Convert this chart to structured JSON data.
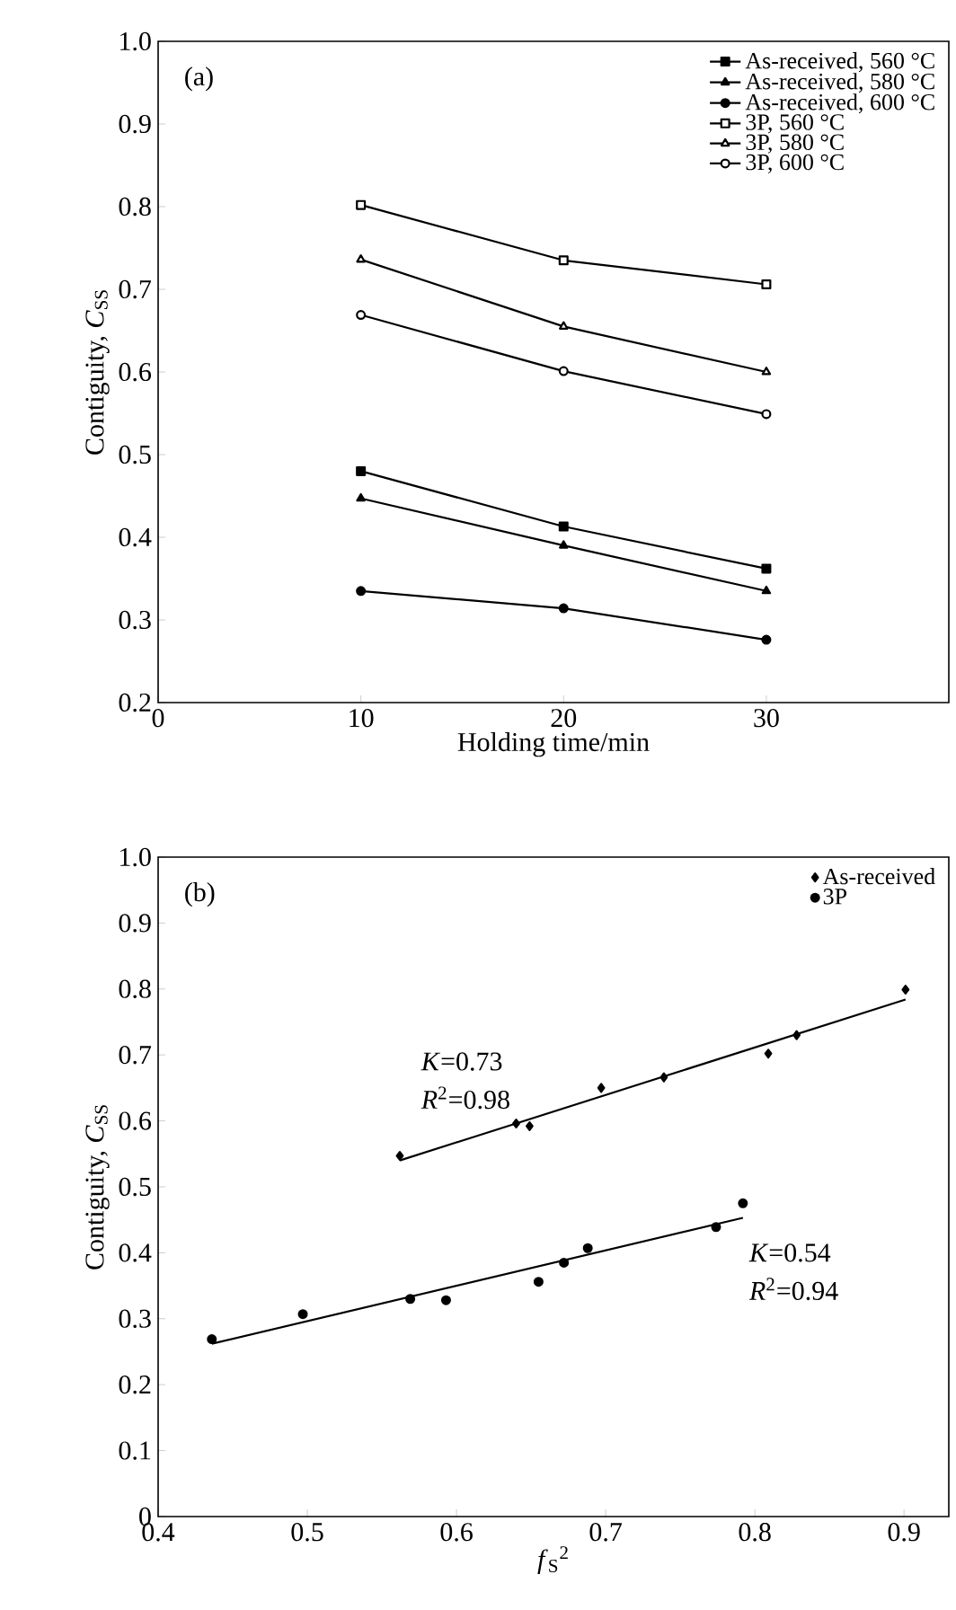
{
  "chart_data": [
    {
      "type": "line",
      "xlabel": "Holding time/min",
      "ylabel": "Contiguity, *C*$_{SS}$",
      "annotations": [
        "(a)"
      ],
      "xlim": [
        0,
        39
      ],
      "ylim": [
        0.2,
        1.0
      ],
      "xticks": [
        0,
        10,
        20,
        30
      ],
      "yticks": [
        0.2,
        0.3,
        0.4,
        0.5,
        0.6,
        0.7,
        0.8,
        0.9,
        {
          "value": 1.0,
          "label": "1.0"
        }
      ],
      "legend": "top right",
      "grid": false,
      "line_style": "solid",
      "x": [
        10,
        20,
        30
      ],
      "series": [
        {
          "name": "As-received, 560 °C",
          "color": "#000000",
          "marker": "square",
          "values": [
            0.48,
            0.413,
            0.362
          ]
        },
        {
          "name": "As-received, 580 °C",
          "color": "#000000",
          "marker": "triangle",
          "values": [
            0.447,
            0.39,
            0.335
          ]
        },
        {
          "name": "As-received, 600 °C",
          "color": "#000000",
          "marker": "circle",
          "values": [
            0.335,
            0.314,
            0.276
          ]
        },
        {
          "name": "3P, 560 °C",
          "color": "#000000",
          "marker": "square-open",
          "values": [
            0.802,
            0.735,
            0.706
          ]
        },
        {
          "name": "3P, 580 °C",
          "color": "#000000",
          "marker": "triangle-open",
          "values": [
            0.736,
            0.655,
            0.6
          ]
        },
        {
          "name": "3P, 600 °C",
          "color": "#000000",
          "marker": "circle-open",
          "values": [
            0.669,
            0.601,
            0.549
          ]
        }
      ]
    },
    {
      "type": "scatter",
      "xlabel": "*f*$_{S}$$^{2}$",
      "ylabel": "Contiguity, *C*$_{SS}$",
      "annotations": [
        "(b)",
        "*K*=0.73",
        "*R*$^{2}$=0.98",
        "*K*=0.54",
        "*R*$^{2}$=0.94"
      ],
      "xlim": [
        0.4,
        0.93
      ],
      "ylim": [
        0,
        1.0
      ],
      "xticks": [
        0.4,
        0.5,
        0.6,
        0.7,
        0.8,
        0.9
      ],
      "yticks": [
        0,
        0.1,
        0.2,
        0.3,
        0.4,
        0.5,
        0.6,
        0.7,
        0.8,
        0.9,
        {
          "value": 1.0,
          "label": "1.0"
        }
      ],
      "legend": "top right",
      "grid": false,
      "series": [
        {
          "name": "As-received",
          "color": "#000000",
          "marker": "diamond",
          "x": [
            0.562,
            0.64,
            0.649,
            0.697,
            0.739,
            0.809,
            0.828,
            0.901
          ],
          "values": [
            0.547,
            0.596,
            0.592,
            0.65,
            0.666,
            0.702,
            0.73,
            0.799
          ]
        },
        {
          "name": "3P",
          "color": "#000000",
          "marker": "circle",
          "x": [
            0.436,
            0.497,
            0.569,
            0.593,
            0.655,
            0.672,
            0.688,
            0.774,
            0.792
          ],
          "values": [
            0.269,
            0.307,
            0.33,
            0.328,
            0.356,
            0.385,
            0.407,
            0.439,
            0.475
          ]
        },
        {
          "type": "line",
          "color": "#000000",
          "marker": "none",
          "x": [
            0.562,
            0.901
          ],
          "values": [
            0.54,
            0.784
          ]
        },
        {
          "type": "line",
          "color": "#000000",
          "marker": "none",
          "x": [
            0.436,
            0.792
          ],
          "values": [
            0.262,
            0.453
          ]
        }
      ]
    }
  ]
}
